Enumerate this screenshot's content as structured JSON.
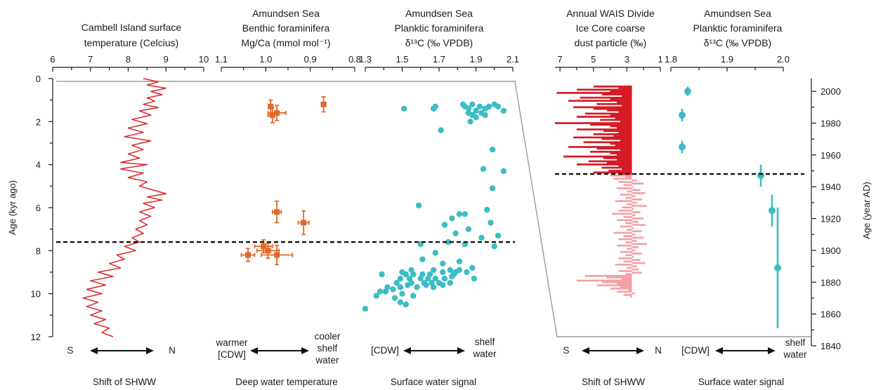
{
  "colors": {
    "temperature_line": "#d7272b",
    "mgca_markers": "#e2682a",
    "d13c_markers": "#3dbcc4",
    "dust_dark": "#d51b24",
    "dust_light": "#f2a2a6",
    "dashed_line": "#111111"
  },
  "left_axis": {
    "label": "Age (kyr ago)",
    "ticks": [
      "0",
      "2",
      "4",
      "6",
      "8",
      "10",
      "12"
    ]
  },
  "right_axis": {
    "label": "Age (year AD)",
    "ticks": [
      "2000",
      "1980",
      "1960",
      "1940",
      "1920",
      "1900",
      "1880",
      "1860",
      "1840"
    ]
  },
  "panels": {
    "temp": {
      "title": [
        "Cambell Island surface",
        "temperature (Celcius)"
      ],
      "ticks": [
        "6",
        "7",
        "8",
        "9",
        "10"
      ],
      "left": "S",
      "right": "N",
      "bottom": "Shift of SHWW"
    },
    "mgca": {
      "title": [
        "Amundsen Sea",
        "Benthic foraminifera",
        "Mg/Ca (mmol mol⁻¹)"
      ],
      "ticks": [
        "1.1",
        "1.0",
        "0.9",
        "0.8"
      ],
      "left": [
        "warmer",
        "[CDW]"
      ],
      "right": [
        "cooler",
        "shelf",
        "water"
      ],
      "bottom": "Deep water temperature"
    },
    "d13c": {
      "title": [
        "Amundsen Sea",
        "Planktic foraminifera",
        "δ¹³C (‰ VPDB)"
      ],
      "ticks": [
        "1.3",
        "1.5",
        "1.7",
        "1.9",
        "2.1"
      ],
      "left": "[CDW]",
      "right": [
        "shelf",
        "water"
      ],
      "bottom": "Surface water signal"
    },
    "dust": {
      "title": [
        "Annual WAIS Divide",
        "Ice Core coarse",
        "dust particle (‰)"
      ],
      "ticks": [
        "7",
        "5",
        "3",
        "1"
      ],
      "left": "S",
      "right": "N",
      "bottom": "Shift of SHWW"
    },
    "d13c_recent": {
      "title": [
        "Amundsen Sea",
        "Planktic foraminifera",
        "δ¹³C (‰ VPDB)"
      ],
      "ticks": [
        "1.8",
        "1.9",
        "2.0"
      ],
      "left": "[CDW]",
      "right": [
        "shelf",
        "water"
      ],
      "bottom": "Surface water signal"
    }
  },
  "chart_data": [
    {
      "type": "line",
      "name": "temp",
      "y_axis": "Age (kyr ago)",
      "xlim": [
        6,
        10
      ],
      "ylim": [
        12,
        0
      ],
      "points": [
        [
          8.4,
          0.0
        ],
        [
          8.8,
          0.15
        ],
        [
          8.5,
          0.3
        ],
        [
          9.0,
          0.45
        ],
        [
          8.6,
          0.6
        ],
        [
          8.9,
          0.75
        ],
        [
          8.5,
          0.9
        ],
        [
          8.7,
          1.05
        ],
        [
          8.4,
          1.2
        ],
        [
          8.8,
          1.35
        ],
        [
          8.3,
          1.5
        ],
        [
          8.6,
          1.7
        ],
        [
          8.1,
          1.9
        ],
        [
          8.5,
          2.1
        ],
        [
          8.0,
          2.3
        ],
        [
          8.4,
          2.5
        ],
        [
          7.9,
          2.7
        ],
        [
          8.6,
          2.9
        ],
        [
          8.1,
          3.1
        ],
        [
          8.4,
          3.3
        ],
        [
          8.0,
          3.5
        ],
        [
          8.3,
          3.7
        ],
        [
          7.8,
          3.9
        ],
        [
          8.5,
          4.0
        ],
        [
          7.8,
          4.2
        ],
        [
          8.4,
          4.4
        ],
        [
          8.0,
          4.6
        ],
        [
          8.5,
          4.8
        ],
        [
          8.3,
          5.0
        ],
        [
          8.7,
          5.2
        ],
        [
          9.0,
          5.35
        ],
        [
          8.5,
          5.5
        ],
        [
          8.9,
          5.65
        ],
        [
          8.4,
          5.8
        ],
        [
          8.7,
          6.0
        ],
        [
          8.3,
          6.2
        ],
        [
          8.6,
          6.4
        ],
        [
          8.3,
          6.6
        ],
        [
          8.5,
          6.8
        ],
        [
          8.2,
          7.0
        ],
        [
          8.4,
          7.2
        ],
        [
          8.1,
          7.4
        ],
        [
          8.3,
          7.6
        ],
        [
          7.9,
          7.8
        ],
        [
          8.2,
          8.0
        ],
        [
          7.7,
          8.2
        ],
        [
          7.9,
          8.4
        ],
        [
          7.5,
          8.6
        ],
        [
          7.8,
          8.8
        ],
        [
          7.2,
          9.0
        ],
        [
          7.6,
          9.2
        ],
        [
          7.0,
          9.4
        ],
        [
          7.4,
          9.6
        ],
        [
          6.9,
          9.8
        ],
        [
          7.3,
          10.0
        ],
        [
          6.8,
          10.2
        ],
        [
          7.2,
          10.4
        ],
        [
          6.9,
          10.6
        ],
        [
          7.3,
          10.8
        ],
        [
          7.0,
          11.0
        ],
        [
          7.4,
          11.2
        ],
        [
          7.1,
          11.4
        ],
        [
          7.5,
          11.6
        ],
        [
          7.3,
          11.8
        ],
        [
          7.6,
          12.0
        ]
      ]
    },
    {
      "type": "scatter",
      "name": "mgca",
      "y_axis": "Age (kyr ago)",
      "xlim": [
        1.1,
        0.8
      ],
      "ylim": [
        12,
        0
      ],
      "points": [
        {
          "x": 0.989,
          "y": 1.3,
          "xerr": 0.005,
          "yerr": 0.3
        },
        {
          "x": 0.985,
          "y": 1.7,
          "xerr": 0.01,
          "yerr": 0.35
        },
        {
          "x": 0.975,
          "y": 1.6,
          "xerr": 0.02,
          "yerr": 0.35
        },
        {
          "x": 0.87,
          "y": 1.2,
          "xerr": 0.005,
          "yerr": 0.35
        },
        {
          "x": 0.975,
          "y": 6.2,
          "xerr": 0.01,
          "yerr": 0.5
        },
        {
          "x": 0.915,
          "y": 6.7,
          "xerr": 0.012,
          "yerr": 0.55
        },
        {
          "x": 1.005,
          "y": 7.8,
          "xerr": 0.02,
          "yerr": 0.3
        },
        {
          "x": 0.995,
          "y": 8.0,
          "xerr": 0.025,
          "yerr": 0.35
        },
        {
          "x": 1.04,
          "y": 8.2,
          "xerr": 0.015,
          "yerr": 0.3
        },
        {
          "x": 0.975,
          "y": 8.2,
          "xerr": 0.035,
          "yerr": 0.45
        }
      ]
    },
    {
      "type": "scatter",
      "name": "d13c",
      "y_axis": "Age (kyr ago)",
      "xlim": [
        1.3,
        2.1
      ],
      "ylim": [
        12,
        0
      ],
      "points": [
        [
          1.51,
          1.4
        ],
        [
          1.67,
          1.4
        ],
        [
          1.68,
          1.3
        ],
        [
          1.83,
          1.2
        ],
        [
          1.84,
          1.3
        ],
        [
          1.86,
          1.4
        ],
        [
          1.88,
          1.2
        ],
        [
          1.9,
          1.5
        ],
        [
          1.92,
          1.3
        ],
        [
          1.95,
          1.4
        ],
        [
          1.97,
          1.3
        ],
        [
          2.0,
          1.2
        ],
        [
          2.02,
          1.3
        ],
        [
          2.05,
          1.5
        ],
        [
          1.86,
          1.6
        ],
        [
          1.88,
          1.7
        ],
        [
          1.9,
          1.8
        ],
        [
          1.93,
          1.6
        ],
        [
          1.95,
          1.7
        ],
        [
          1.87,
          2.0
        ],
        [
          1.71,
          2.4
        ],
        [
          1.99,
          3.3
        ],
        [
          1.94,
          4.2
        ],
        [
          2.05,
          4.3
        ],
        [
          1.99,
          5.1
        ],
        [
          1.59,
          5.9
        ],
        [
          1.96,
          6.1
        ],
        [
          1.81,
          6.3
        ],
        [
          1.84,
          6.3
        ],
        [
          1.77,
          6.5
        ],
        [
          1.73,
          6.8
        ],
        [
          1.98,
          6.7
        ],
        [
          1.86,
          7.0
        ],
        [
          1.79,
          7.2
        ],
        [
          2.02,
          7.3
        ],
        [
          1.93,
          7.4
        ],
        [
          1.6,
          7.7
        ],
        [
          1.75,
          7.6
        ],
        [
          1.84,
          7.7
        ],
        [
          2.0,
          7.8
        ],
        [
          1.68,
          8.1
        ],
        [
          1.61,
          8.4
        ],
        [
          1.81,
          8.5
        ],
        [
          1.72,
          8.6
        ],
        [
          1.88,
          8.8
        ],
        [
          1.55,
          8.9
        ],
        [
          1.67,
          8.9
        ],
        [
          1.76,
          8.9
        ],
        [
          1.81,
          8.9
        ],
        [
          1.79,
          9.0
        ],
        [
          1.85,
          9.0
        ],
        [
          1.39,
          9.1
        ],
        [
          1.5,
          9.0
        ],
        [
          1.52,
          9.1
        ],
        [
          1.56,
          9.1
        ],
        [
          1.61,
          9.1
        ],
        [
          1.65,
          9.1
        ],
        [
          1.72,
          9.0
        ],
        [
          1.78,
          9.1
        ],
        [
          1.49,
          9.3
        ],
        [
          1.54,
          9.3
        ],
        [
          1.6,
          9.3
        ],
        [
          1.64,
          9.3
        ],
        [
          1.68,
          9.3
        ],
        [
          1.73,
          9.3
        ],
        [
          1.77,
          9.2
        ],
        [
          1.89,
          9.3
        ],
        [
          1.47,
          9.5
        ],
        [
          1.55,
          9.5
        ],
        [
          1.62,
          9.5
        ],
        [
          1.66,
          9.5
        ],
        [
          1.7,
          9.5
        ],
        [
          1.72,
          9.6
        ],
        [
          1.76,
          9.5
        ],
        [
          1.42,
          9.7
        ],
        [
          1.45,
          9.8
        ],
        [
          1.49,
          9.7
        ],
        [
          1.53,
          9.6
        ],
        [
          1.58,
          9.7
        ],
        [
          1.63,
          9.6
        ],
        [
          1.67,
          9.7
        ],
        [
          1.38,
          9.9
        ],
        [
          1.41,
          9.9
        ],
        [
          1.5,
          10.0
        ],
        [
          1.36,
          10.1
        ],
        [
          1.46,
          10.2
        ],
        [
          1.56,
          10.1
        ],
        [
          1.49,
          10.4
        ],
        [
          1.52,
          10.5
        ],
        [
          1.3,
          10.7
        ]
      ]
    },
    {
      "type": "bar",
      "name": "dust",
      "y_axis": "Age (year AD)",
      "xlim": [
        8,
        1
      ],
      "ylim": [
        1840,
        2008
      ],
      "orientation": "horizontal",
      "baseline": 2.7,
      "recent_value_threshold_year": 1948,
      "values": [
        [
          2003,
          5
        ],
        [
          2002,
          3.5
        ],
        [
          2001,
          6
        ],
        [
          2000,
          4
        ],
        [
          1999,
          7.2
        ],
        [
          1998,
          4.5
        ],
        [
          1997,
          3.3
        ],
        [
          1996,
          5.8
        ],
        [
          1995,
          4
        ],
        [
          1994,
          6.5
        ],
        [
          1993,
          3.6
        ],
        [
          1992,
          4.8
        ],
        [
          1991,
          3.3
        ],
        [
          1990,
          6.2
        ],
        [
          1989,
          5
        ],
        [
          1988,
          4.2
        ],
        [
          1987,
          3.5
        ],
        [
          1986,
          5.5
        ],
        [
          1985,
          4
        ],
        [
          1984,
          6
        ],
        [
          1983,
          3.7
        ],
        [
          1982,
          4.6
        ],
        [
          1981,
          3.4
        ],
        [
          1980,
          7.3
        ],
        [
          1979,
          5.2
        ],
        [
          1978,
          4
        ],
        [
          1977,
          3.6
        ],
        [
          1976,
          6
        ],
        [
          1975,
          4.4
        ],
        [
          1974,
          3.5
        ],
        [
          1973,
          5
        ],
        [
          1972,
          3.8
        ],
        [
          1971,
          6.2
        ],
        [
          1970,
          4.5
        ],
        [
          1969,
          3.4
        ],
        [
          1968,
          5.6
        ],
        [
          1967,
          4
        ],
        [
          1966,
          3.7
        ],
        [
          1965,
          6.5
        ],
        [
          1964,
          4.8
        ],
        [
          1963,
          3.4
        ],
        [
          1962,
          5.2
        ],
        [
          1961,
          4
        ],
        [
          1960,
          3.6
        ],
        [
          1959,
          6.8
        ],
        [
          1958,
          4.4
        ],
        [
          1957,
          3.6
        ],
        [
          1956,
          5.3
        ],
        [
          1955,
          4.2
        ],
        [
          1954,
          6
        ],
        [
          1953,
          3.5
        ],
        [
          1952,
          4.5
        ],
        [
          1951,
          3.3
        ],
        [
          1950,
          4.1
        ],
        [
          1949,
          5
        ],
        [
          1948,
          3.4
        ],
        [
          1947,
          4
        ],
        [
          1946,
          3.1
        ],
        [
          1945,
          3.8
        ],
        [
          1944,
          2.4
        ],
        [
          1943,
          3.5
        ],
        [
          1942,
          2
        ],
        [
          1941,
          3.2
        ],
        [
          1940,
          2.6
        ],
        [
          1939,
          3.6
        ],
        [
          1938,
          2.2
        ],
        [
          1937,
          3
        ],
        [
          1936,
          1.9
        ],
        [
          1935,
          3.4
        ],
        [
          1934,
          2.5
        ],
        [
          1933,
          3.1
        ],
        [
          1932,
          2.1
        ],
        [
          1931,
          3.7
        ],
        [
          1930,
          2.4
        ],
        [
          1929,
          3
        ],
        [
          1928,
          1.8
        ],
        [
          1927,
          3.3
        ],
        [
          1926,
          2.6
        ],
        [
          1925,
          3.5
        ],
        [
          1924,
          2.2
        ],
        [
          1923,
          3.9
        ],
        [
          1922,
          2.5
        ],
        [
          1921,
          3.2
        ],
        [
          1920,
          2
        ],
        [
          1919,
          3.6
        ],
        [
          1918,
          2.3
        ],
        [
          1917,
          3.1
        ],
        [
          1916,
          1.9
        ],
        [
          1915,
          3.4
        ],
        [
          1914,
          2.6
        ],
        [
          1913,
          3
        ],
        [
          1912,
          2.1
        ],
        [
          1911,
          3.8
        ],
        [
          1910,
          2.5
        ],
        [
          1909,
          3.2
        ],
        [
          1908,
          2
        ],
        [
          1907,
          3.5
        ],
        [
          1906,
          2.4
        ],
        [
          1905,
          3.1
        ],
        [
          1904,
          1.8
        ],
        [
          1903,
          3.6
        ],
        [
          1902,
          2.3
        ],
        [
          1901,
          3
        ],
        [
          1900,
          2.5
        ],
        [
          1899,
          3.4
        ],
        [
          1898,
          2.1
        ],
        [
          1897,
          3.1
        ],
        [
          1896,
          2.6
        ],
        [
          1895,
          3.5
        ],
        [
          1894,
          2.2
        ],
        [
          1893,
          3.2
        ],
        [
          1892,
          1.9
        ],
        [
          1891,
          3.7
        ],
        [
          1890,
          2.4
        ],
        [
          1889,
          3
        ],
        [
          1888,
          2.3
        ],
        [
          1887,
          3.5
        ],
        [
          1886,
          2.1
        ],
        [
          1885,
          3.1
        ],
        [
          1884,
          5.5
        ],
        [
          1883,
          4.2
        ],
        [
          1882,
          3.3
        ],
        [
          1881,
          6
        ],
        [
          1880,
          4.5
        ],
        [
          1879,
          3.6
        ],
        [
          1878,
          4.8
        ],
        [
          1877,
          3.4
        ],
        [
          1876,
          4
        ],
        [
          1875,
          2.9
        ],
        [
          1874,
          3.6
        ],
        [
          1873,
          2.5
        ],
        [
          1872,
          3.2
        ],
        [
          1871,
          2.8
        ]
      ]
    },
    {
      "type": "scatter",
      "name": "d13c_recent",
      "y_axis": "Age (year AD)",
      "xlim": [
        1.8,
        2.0
      ],
      "ylim": [
        1840,
        2008
      ],
      "points": [
        {
          "x": 1.83,
          "y": 2000,
          "yerr": 3
        },
        {
          "x": 1.82,
          "y": 1985,
          "yerr": 4
        },
        {
          "x": 1.82,
          "y": 1965,
          "yerr": 4
        },
        {
          "x": 1.96,
          "y": 1947,
          "yerr": 7
        },
        {
          "x": 1.98,
          "y": 1925,
          "yerr": 10
        },
        {
          "x": 1.99,
          "y": 1889,
          "yerr": 38
        }
      ]
    }
  ],
  "reference_lines": [
    {
      "kind": "dashed-horizontal",
      "axis": "Age (kyr ago)",
      "value": 7.6
    },
    {
      "kind": "dashed-horizontal",
      "axis": "Age (year AD)",
      "value": 1948
    }
  ]
}
